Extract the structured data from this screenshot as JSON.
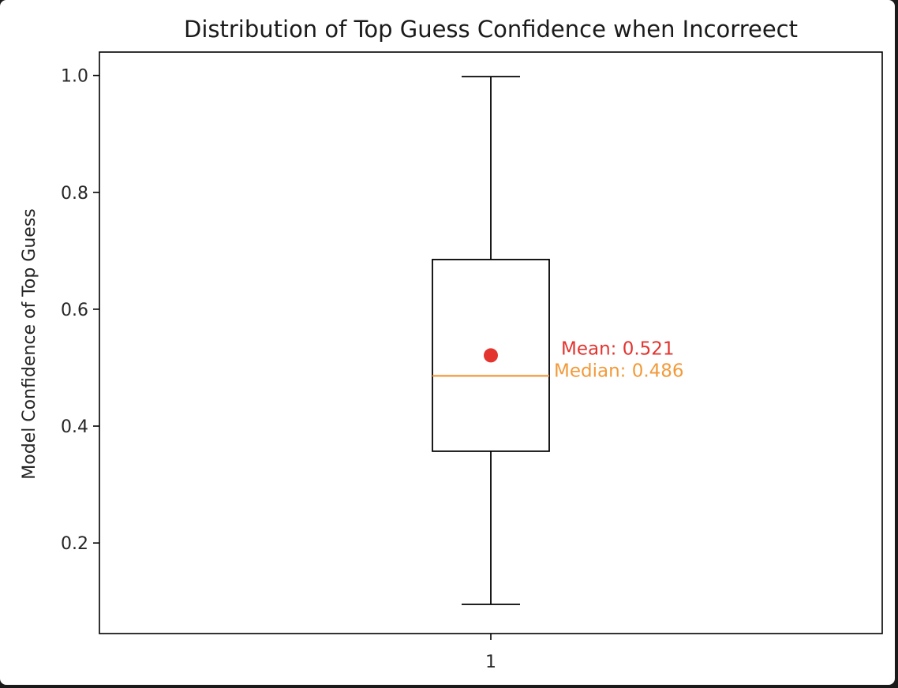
{
  "chart_data": {
    "type": "box",
    "title": "Distribution of Top Guess Confidence when Incorreect",
    "xlabel": "",
    "ylabel": "Model Confidence of Top Guess",
    "categories": [
      "1"
    ],
    "boxes": [
      {
        "category": "1",
        "whisker_low": 0.095,
        "q1": 0.357,
        "median": 0.486,
        "q3": 0.685,
        "whisker_high": 0.998,
        "mean": 0.521
      }
    ],
    "yticks": [
      "0.2",
      "0.4",
      "0.6",
      "0.8",
      "1.0"
    ],
    "ytick_values": [
      0.2,
      0.4,
      0.6,
      0.8,
      1.0
    ],
    "ylim": [
      0.045,
      1.04
    ],
    "grid": false,
    "annotations": {
      "mean_label": "Mean: 0.521",
      "median_label": "Median:  0.486"
    },
    "colors": {
      "box": "#000000",
      "median": "#f29a3a",
      "mean_marker": "#e3342f",
      "mean_text": "#e3342f",
      "median_text": "#f29a3a"
    }
  }
}
